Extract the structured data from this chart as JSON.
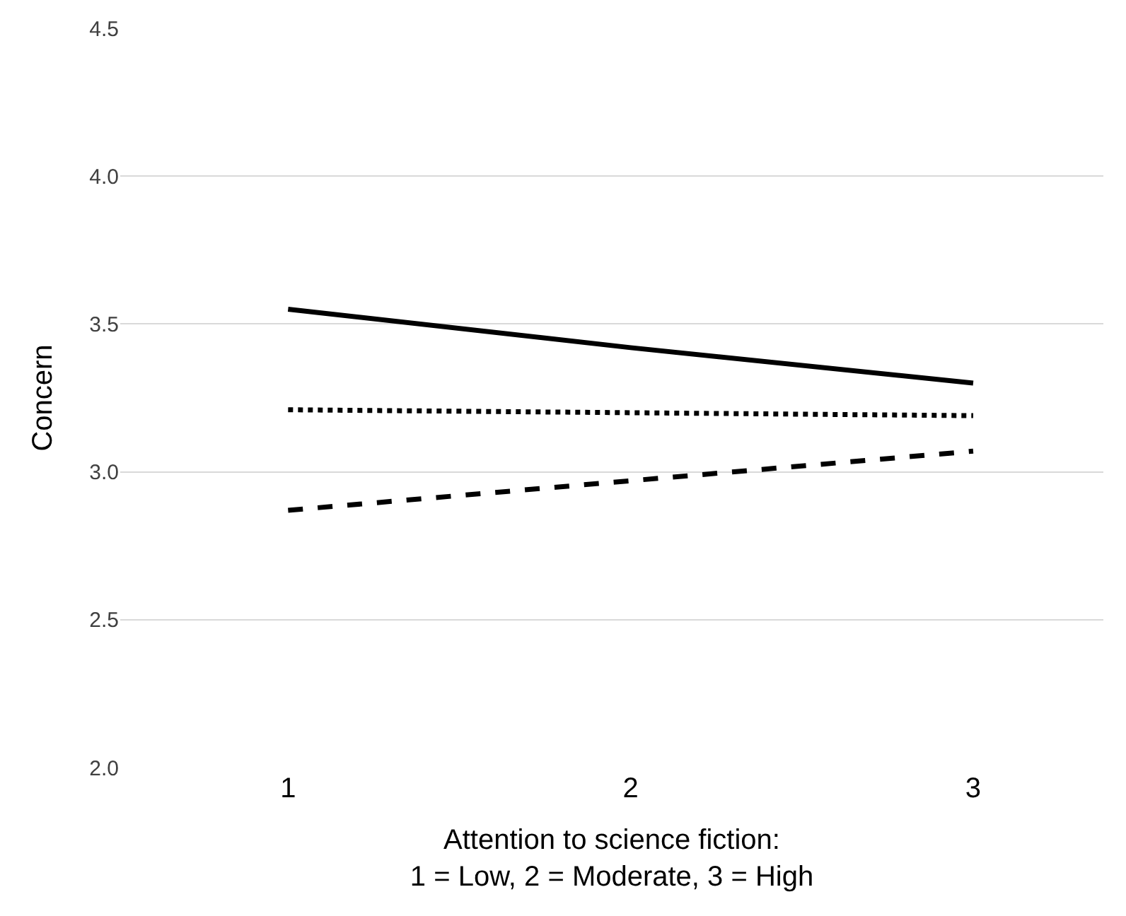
{
  "chart_data": {
    "type": "line",
    "xlabel": "Attention to science fiction:\n1 = Low, 2 = Moderate, 3 = High",
    "ylabel": "Concern",
    "categories": [
      "1",
      "2",
      "3"
    ],
    "series": [
      {
        "color": "#000000",
        "line_style": "solid",
        "values": [
          3.55,
          3.42,
          3.3
        ]
      },
      {
        "color": "#000000",
        "line_style": "dotted",
        "values": [
          3.21,
          3.2,
          3.19
        ]
      },
      {
        "color": "#000000",
        "line_style": "dashed",
        "values": [
          2.87,
          2.97,
          3.07
        ]
      }
    ],
    "ylim": [
      2.0,
      4.5
    ],
    "yticks": [
      {
        "value": 2,
        "label": "2.0"
      },
      2.5,
      {
        "value": 3,
        "label": "3.0"
      },
      3.5,
      {
        "value": 4,
        "label": "4.0"
      },
      4.5
    ],
    "grid": "y"
  }
}
